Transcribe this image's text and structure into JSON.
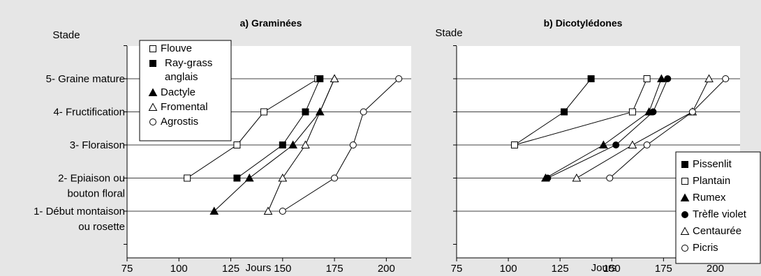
{
  "chart_data": [
    {
      "type": "line",
      "title": "a)  Graminées",
      "xlabel": "Jours",
      "ylabel": "Stade",
      "xlim": [
        75,
        212
      ],
      "ylim": [
        0,
        6
      ],
      "x_ticks": [
        75,
        100,
        125,
        150,
        175,
        200
      ],
      "y_ticks": [
        {
          "value": 5,
          "lines": [
            "5- Graine mature"
          ]
        },
        {
          "value": 4,
          "lines": [
            "4- Fructification"
          ]
        },
        {
          "value": 3,
          "lines": [
            "3- Floraison"
          ]
        },
        {
          "value": 2,
          "lines": [
            "2- Epiaison ou",
            "bouton floral"
          ]
        },
        {
          "value": 1,
          "lines": [
            "1- Début montaison",
            "ou rosette"
          ]
        }
      ],
      "grid": "horizontal",
      "legend_position": "top-left",
      "series": [
        {
          "name": "Flouve",
          "marker": "square-open",
          "points": [
            [
              104,
              2
            ],
            [
              128,
              3
            ],
            [
              141,
              4
            ],
            [
              167,
              5
            ]
          ]
        },
        {
          "name": "Ray-grass anglais",
          "legend_lines": [
            "Ray-grass",
            "anglais"
          ],
          "marker": "square-filled",
          "points": [
            [
              128,
              2
            ],
            [
              150,
              3
            ],
            [
              161,
              4
            ],
            [
              168,
              5
            ]
          ]
        },
        {
          "name": "Dactyle",
          "marker": "triangle-filled",
          "points": [
            [
              117,
              1
            ],
            [
              134,
              2
            ],
            [
              155,
              3
            ],
            [
              168,
              4
            ],
            [
              175,
              5
            ]
          ]
        },
        {
          "name": "Fromental",
          "marker": "triangle-open",
          "points": [
            [
              143,
              1
            ],
            [
              150,
              2
            ],
            [
              161,
              3
            ],
            [
              175,
              5
            ]
          ]
        },
        {
          "name": "Agrostis",
          "marker": "circle-open",
          "points": [
            [
              150,
              1
            ],
            [
              175,
              2
            ],
            [
              184,
              3
            ],
            [
              189,
              4
            ],
            [
              206,
              5
            ]
          ]
        }
      ]
    },
    {
      "type": "line",
      "title": "b) Dicotylédones",
      "xlabel": "Jours",
      "ylabel": "Stade",
      "xlim": [
        75,
        212
      ],
      "ylim": [
        0,
        6
      ],
      "x_ticks": [
        75,
        100,
        125,
        150,
        175,
        200
      ],
      "grid": "horizontal",
      "legend_position": "right",
      "series": [
        {
          "name": "Pissenlit",
          "marker": "square-filled",
          "points": [
            [
              103,
              3
            ],
            [
              127,
              4
            ],
            [
              140,
              5
            ]
          ]
        },
        {
          "name": "Plantain",
          "marker": "square-open",
          "points": [
            [
              103,
              3
            ],
            [
              160,
              4
            ],
            [
              167,
              5
            ]
          ]
        },
        {
          "name": "Rumex",
          "marker": "triangle-filled",
          "points": [
            [
              118,
              2
            ],
            [
              146,
              3
            ],
            [
              168,
              4
            ],
            [
              174,
              5
            ]
          ]
        },
        {
          "name": "Trèfle violet",
          "marker": "circle-filled",
          "points": [
            [
              119,
              2
            ],
            [
              152,
              3
            ],
            [
              170,
              4
            ],
            [
              177,
              5
            ]
          ]
        },
        {
          "name": "Centaurée",
          "marker": "triangle-open",
          "points": [
            [
              133,
              2
            ],
            [
              160,
              3
            ],
            [
              189,
              4
            ],
            [
              197,
              5
            ]
          ]
        },
        {
          "name": "Picris",
          "marker": "circle-open",
          "points": [
            [
              149,
              2
            ],
            [
              167,
              3
            ],
            [
              189,
              4
            ],
            [
              205,
              5
            ]
          ]
        }
      ]
    }
  ]
}
